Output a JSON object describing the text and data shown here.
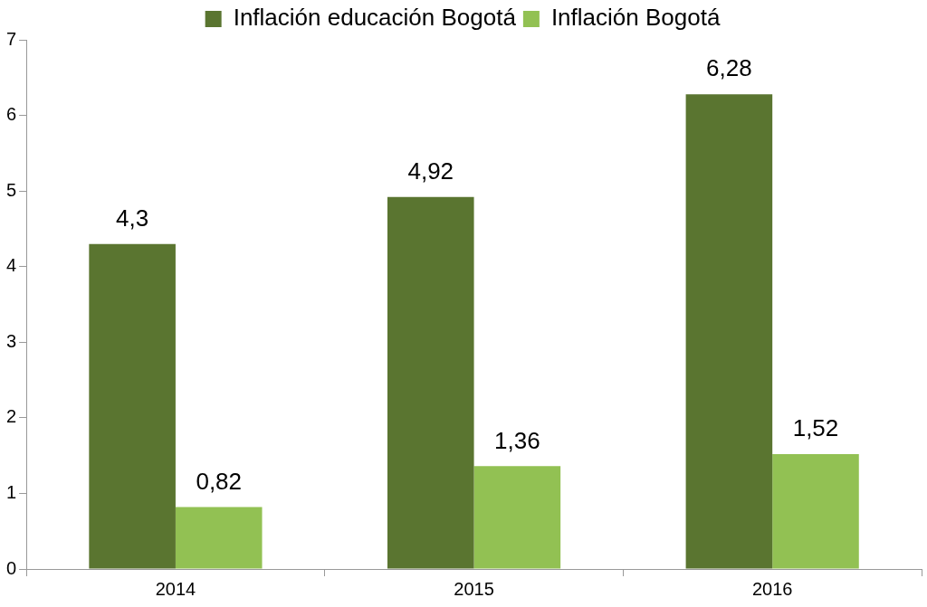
{
  "chart_data": {
    "type": "bar",
    "categories": [
      "2014",
      "2015",
      "2016"
    ],
    "series": [
      {
        "name": "Inflación educación Bogotá",
        "color": "#5a7530",
        "values": [
          4.3,
          4.92,
          6.28
        ],
        "value_labels": [
          "4,3",
          "4,92",
          "6,28"
        ]
      },
      {
        "name": "Inflación Bogotá",
        "color": "#92c153",
        "values": [
          0.82,
          1.36,
          1.52
        ],
        "value_labels": [
          "0,82",
          "1,36",
          "1,52"
        ]
      }
    ],
    "ylim": [
      0,
      7
    ],
    "yticks": [
      0,
      1,
      2,
      3,
      4,
      5,
      6,
      7
    ],
    "grid": false,
    "legend": "top"
  }
}
